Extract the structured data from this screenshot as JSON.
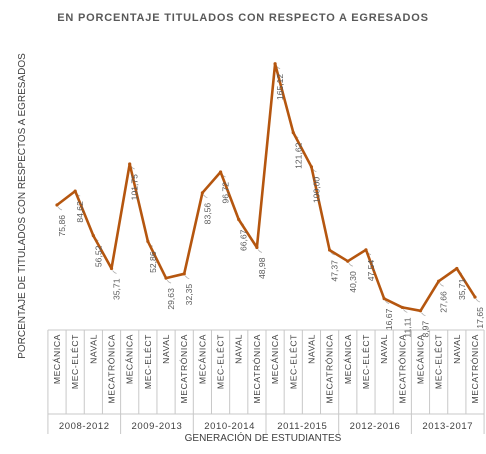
{
  "chart_data": {
    "type": "line",
    "title": "EN PORCENTAJE TITULADOS CON RESPECTO A EGRESADOS",
    "ylabel": "PORCENTAJE DE TITULADOS CON RESPECTOS A EGRESADOS",
    "xlabel": "GENERACIÓN DE ESTUDIANTES",
    "groups": [
      {
        "label": "2008-2012",
        "categories": [
          "MECÁNICA",
          "MEC-ELÉCT",
          "NAVAL",
          "MECATRÓNICA"
        ]
      },
      {
        "label": "2009-2013",
        "categories": [
          "MECÁNICA",
          "MEC-ELÉCT",
          "NAVAL",
          "MECATRÓNICA"
        ]
      },
      {
        "label": "2010-2014",
        "categories": [
          "MECÁNICA",
          "MEC-ELÉCT",
          "NAVAL",
          "MECATRÓNICA"
        ]
      },
      {
        "label": "2011-2015",
        "categories": [
          "MECÁNICA",
          "MEC-ELÉCT",
          "NAVAL",
          "MECATRÓNICA"
        ]
      },
      {
        "label": "2012-2016",
        "categories": [
          "MECÁNICA",
          "MEC-ELÉCT",
          "NAVAL",
          "MECATRÓNICA"
        ]
      },
      {
        "label": "2013-2017",
        "categories": [
          "MECÁNICA",
          "MEC-ELÉCT",
          "NAVAL",
          "MECATRÓNICA"
        ]
      }
    ],
    "values": [
      75.86,
      84.62,
      56.52,
      35.71,
      101.75,
      52.86,
      29.63,
      32.35,
      83.56,
      96.72,
      66.67,
      48.98,
      165.12,
      121.62,
      100.0,
      47.37,
      40.3,
      47.54,
      16.67,
      11.11,
      8.97,
      27.66,
      35.71,
      17.65
    ],
    "value_labels": [
      "75,86",
      "84,62",
      "56,52",
      "35,71",
      "101,75",
      "52,86",
      "29,63",
      "32,35",
      "83,56",
      "96,72",
      "66,67",
      "48,98",
      "165,12",
      "121,62",
      "100,00",
      "47,37",
      "40,30",
      "47,54",
      "16,67",
      "11,11",
      "8,97",
      "27,66",
      "35,71",
      "17,65"
    ],
    "line_color": "#b5560f",
    "grid": false,
    "legend": "none"
  }
}
